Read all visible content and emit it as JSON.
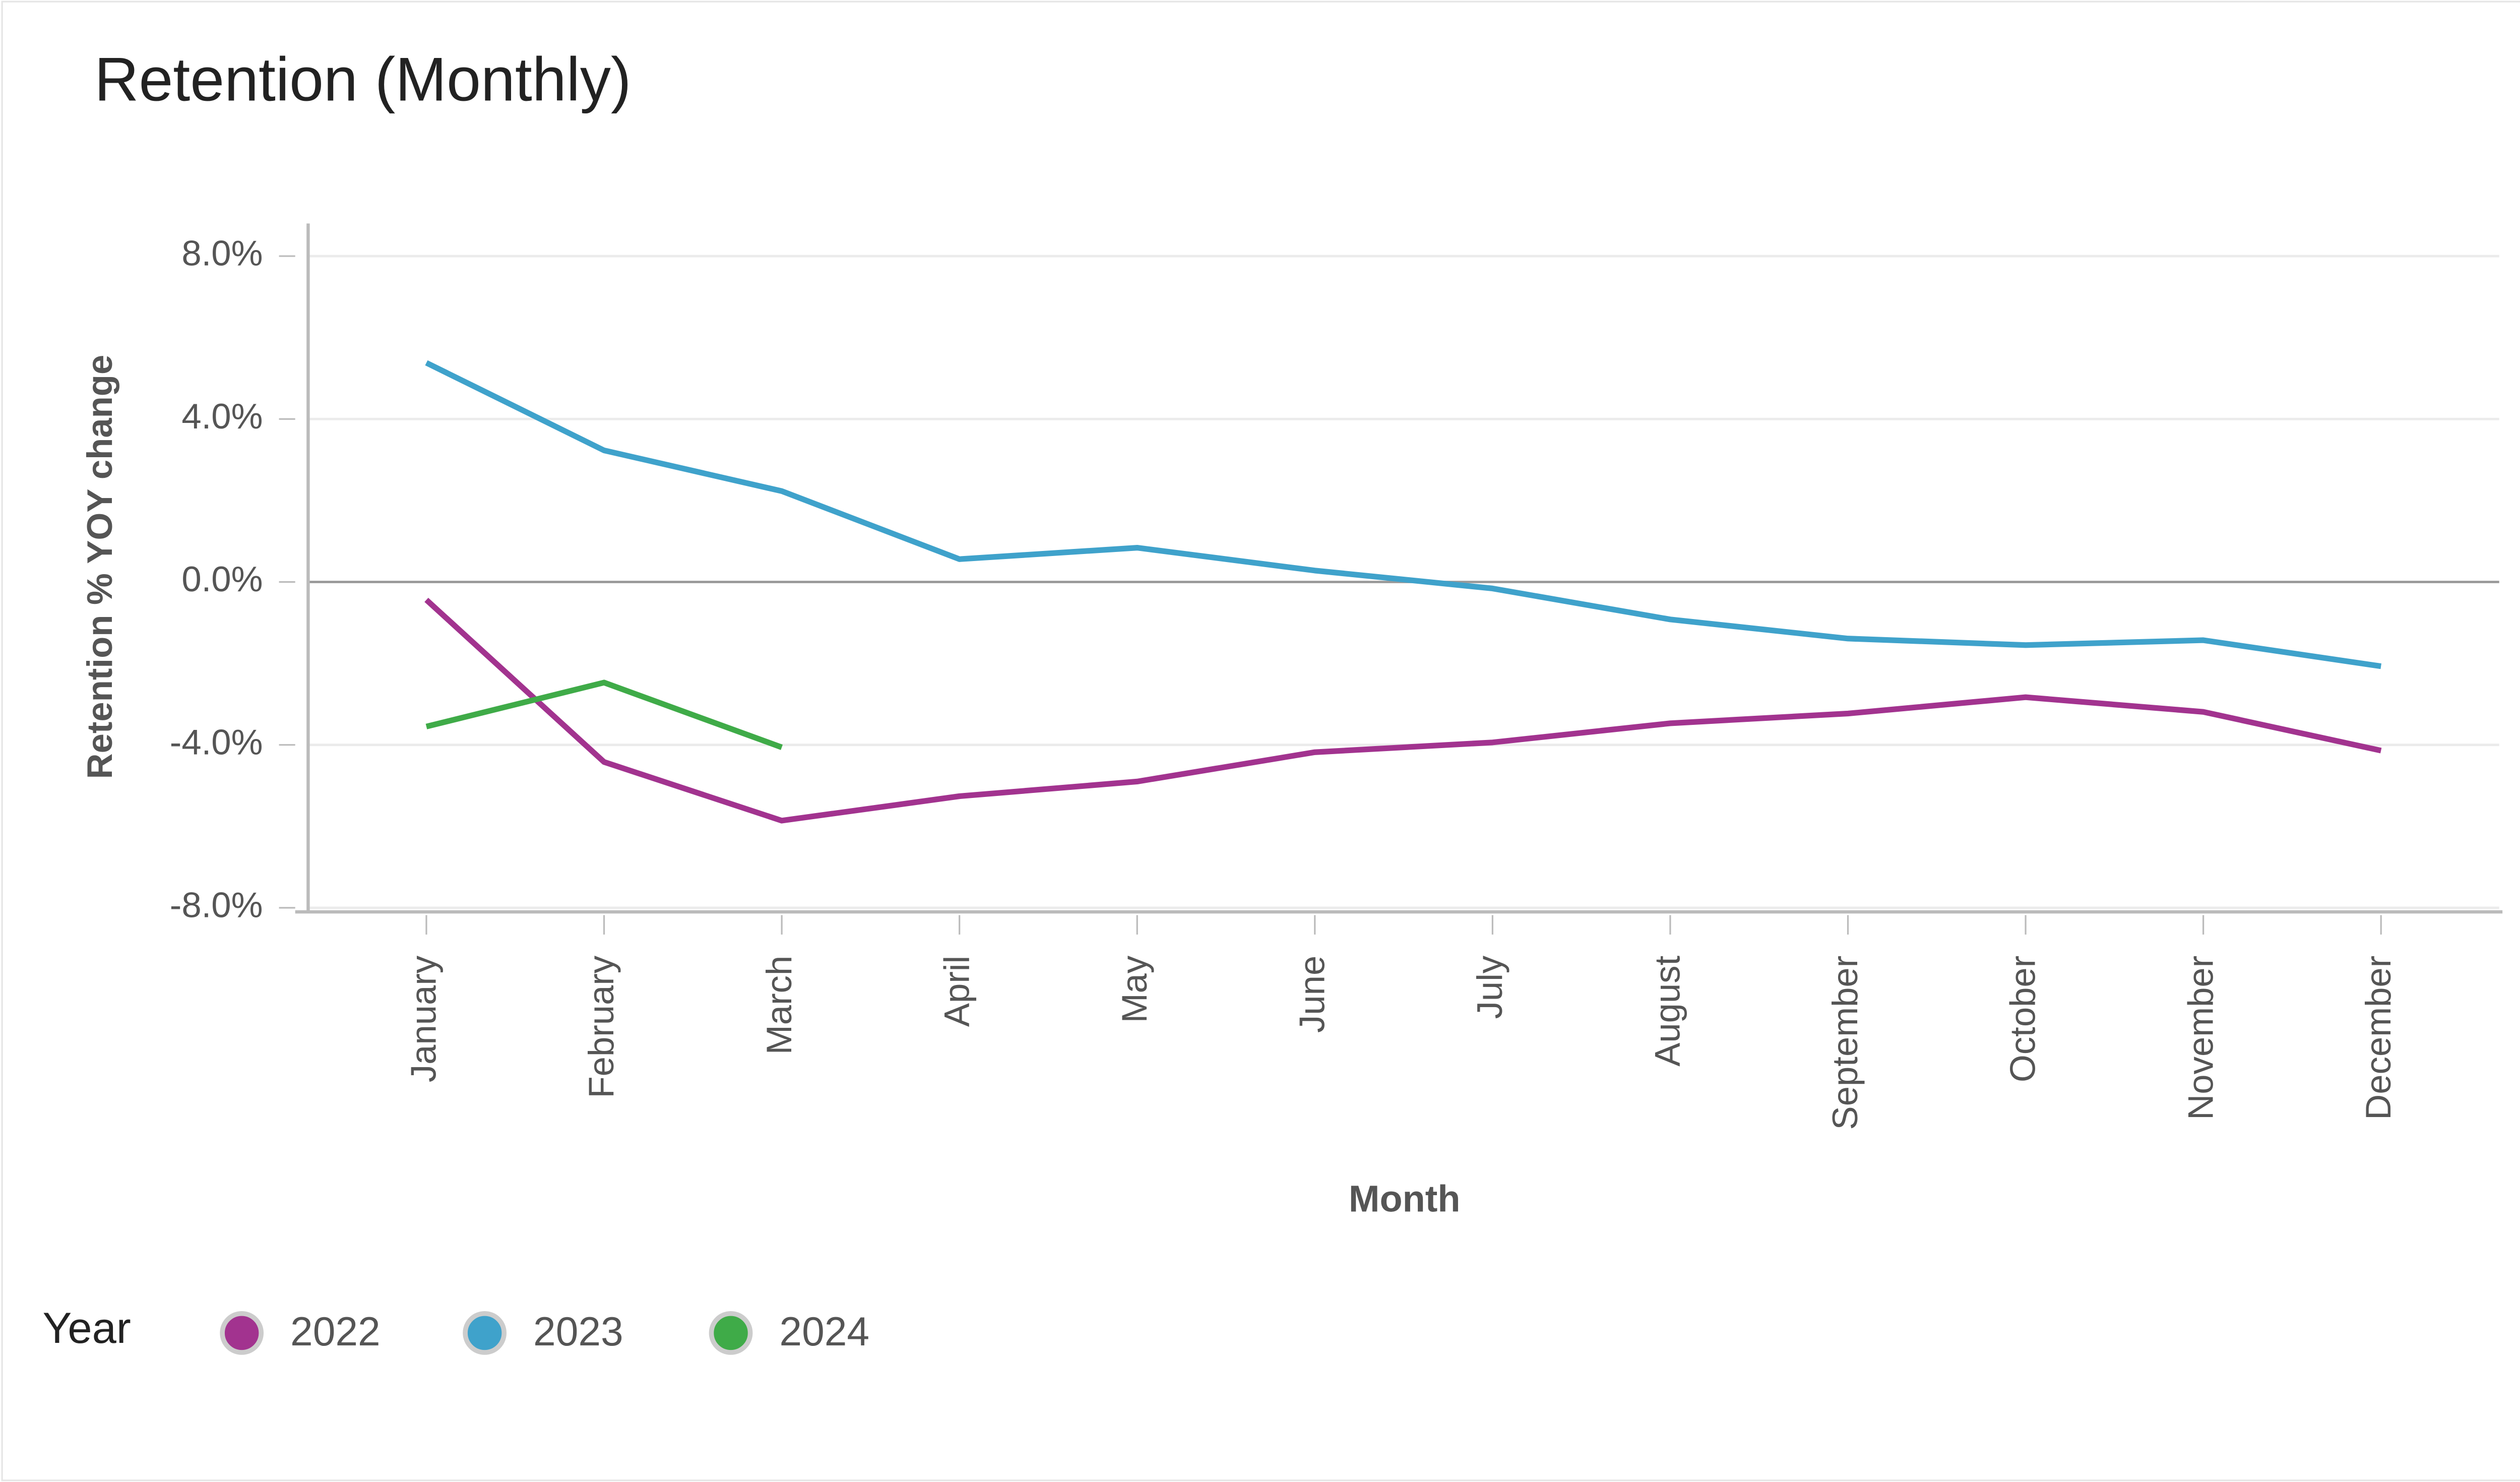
{
  "chart_data": {
    "type": "line",
    "title": "Retention (Monthly)",
    "x_label": "Month",
    "y_label": "Retention % YOY change",
    "legend_title": "Year",
    "categories": [
      "January",
      "February",
      "March",
      "April",
      "May",
      "June",
      "July",
      "August",
      "September",
      "October",
      "November",
      "December"
    ],
    "series": [
      {
        "name": "2022",
        "color": "#a2338f",
        "values": [
          -0.44,
          -4.42,
          -5.86,
          -5.26,
          -4.9,
          -4.18,
          -3.94,
          -3.47,
          -3.23,
          -2.83,
          -3.19,
          -4.14
        ]
      },
      {
        "name": "2023",
        "color": "#3fa2cb",
        "values": [
          5.38,
          3.23,
          2.23,
          0.56,
          0.84,
          0.28,
          -0.16,
          -0.92,
          -1.39,
          -1.55,
          -1.43,
          -2.07
        ]
      },
      {
        "name": "2024",
        "color": "#3fab48",
        "values": [
          -3.55,
          -2.47,
          -4.06,
          null,
          null,
          null,
          null,
          null,
          null,
          null,
          null,
          null
        ]
      }
    ],
    "ylim": [
      -8.1,
      8.8
    ],
    "yticks": [
      {
        "value": 8,
        "label": "8.0%"
      },
      {
        "value": 4,
        "label": "4.0%"
      },
      {
        "value": 0,
        "label": "0.0%"
      },
      {
        "value": -4,
        "label": "-4.0%"
      },
      {
        "value": -8,
        "label": "-8.0%"
      }
    ],
    "grid": true
  }
}
